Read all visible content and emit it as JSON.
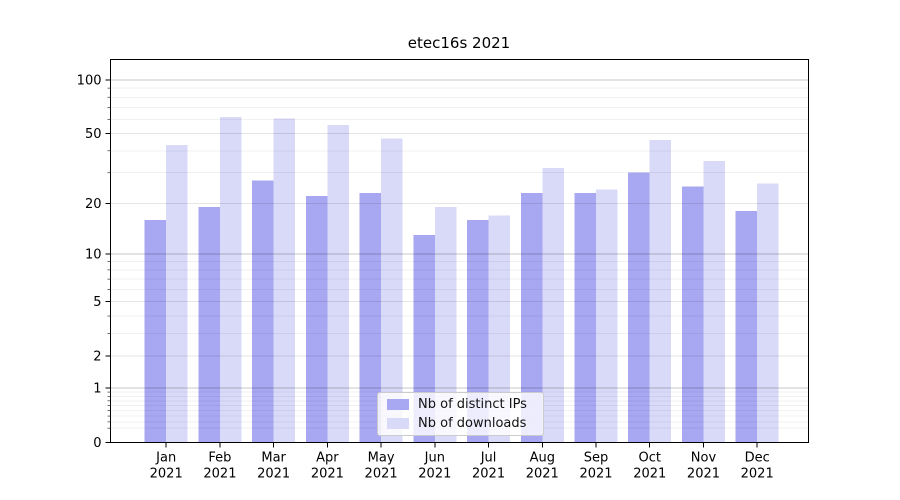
{
  "chart_data": {
    "type": "bar",
    "title": "etec16s 2021",
    "categories": [
      "Jan",
      "Feb",
      "Mar",
      "Apr",
      "May",
      "Jun",
      "Jul",
      "Aug",
      "Sep",
      "Oct",
      "Nov",
      "Dec"
    ],
    "year": "2021",
    "series": [
      {
        "name": "Nb of distinct IPs",
        "color": "#a7a7f2",
        "values": [
          16,
          19,
          27,
          22,
          23,
          13,
          16,
          23,
          23,
          30,
          25,
          18
        ]
      },
      {
        "name": "Nb of downloads",
        "color": "#d9d9f8",
        "values": [
          43,
          62,
          61,
          56,
          47,
          19,
          17,
          32,
          24,
          46,
          35,
          26
        ]
      }
    ],
    "xlabel": "",
    "ylabel": "",
    "yscale": "log1p",
    "ylim": [
      0,
      130
    ],
    "yticks": [
      0,
      1,
      2,
      5,
      10,
      20,
      50,
      100
    ],
    "yticks_minor": [
      0.2,
      0.3,
      0.4,
      0.5,
      0.6,
      0.7,
      0.8,
      0.9,
      3,
      4,
      6,
      7,
      8,
      9,
      30,
      40,
      60,
      70,
      80,
      90
    ],
    "grid": true,
    "legend_position": "lower center"
  }
}
